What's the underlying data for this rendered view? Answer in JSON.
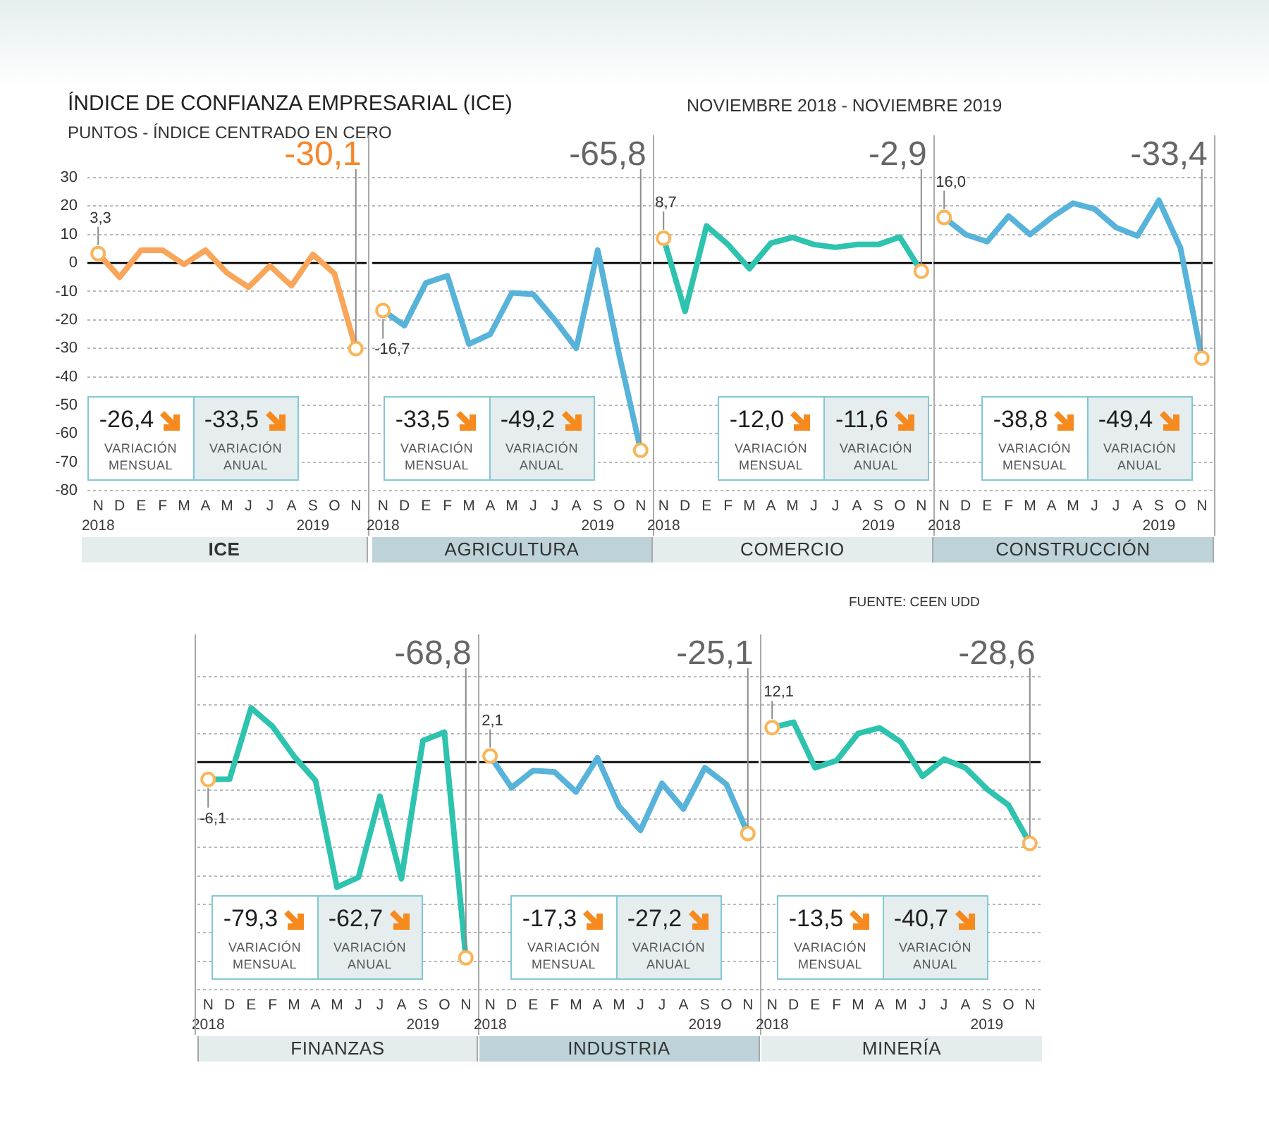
{
  "chart_data": [
    {
      "type": "line",
      "title": "ÍNDICE DE CONFIANZA EMPRESARIAL (ICE)",
      "subtitle": "PUNTOS - ÍNDICE CENTRADO EN CERO",
      "xlabel": "ICE",
      "categories": [
        "N\n2018",
        "D",
        "E",
        "F",
        "M",
        "A",
        "M",
        "J",
        "J",
        "A",
        "S\n2019",
        "O",
        "N"
      ],
      "values": [
        3.3,
        -5,
        4.5,
        4.5,
        -0.5,
        4.5,
        -3.5,
        -8.5,
        -1,
        -8,
        3,
        -3.7,
        -30.1
      ],
      "value_labels": [
        "3,3",
        null,
        null,
        null,
        null,
        null,
        null,
        null,
        null,
        null,
        null,
        null,
        "-30,1"
      ],
      "color": "#f9a65a",
      "ylim": [
        -80,
        30
      ],
      "yticks": [
        30,
        20,
        10,
        0,
        -10,
        -20,
        -30,
        -40,
        -50,
        -60,
        -70,
        -80
      ],
      "grid": "y",
      "ref_lines": [
        {
          "axis": "y",
          "value": 0,
          "color": "#000000"
        }
      ],
      "annotations": [
        "-26,4",
        "VARIACIÓN MENSUAL",
        "-33,5",
        "VARIACIÓN ANUAL",
        "NOVIEMBRE 2018 - NOVIEMBRE 2019",
        "FUENTE: CEEN UDD"
      ]
    },
    {
      "type": "line",
      "xlabel": "AGRICULTURA",
      "categories": [
        "N\n2018",
        "D",
        "E",
        "F",
        "M",
        "A",
        "M",
        "J",
        "J",
        "A",
        "S\n2019",
        "O",
        "N"
      ],
      "values": [
        -16.7,
        -22,
        -7,
        -4.5,
        -28.5,
        -25,
        -10.5,
        -11,
        -20,
        -30,
        4.5,
        -32.3,
        -65.8
      ],
      "value_labels": [
        "-16,7",
        null,
        null,
        null,
        null,
        null,
        null,
        null,
        null,
        null,
        null,
        null,
        "-65,8"
      ],
      "color": "#57b3d9",
      "ylim": [
        -80,
        30
      ],
      "yticks": [
        30,
        20,
        10,
        0,
        -10,
        -20,
        -30,
        -40,
        -50,
        -60,
        -70,
        -80
      ],
      "grid": "y",
      "tick_labels": "x",
      "ref_lines": [
        {
          "axis": "y",
          "value": 0,
          "color": "#000000"
        }
      ],
      "annotations": [
        "-33,5",
        "VARIACIÓN MENSUAL",
        "-49,2",
        "VARIACIÓN ANUAL"
      ]
    },
    {
      "type": "line",
      "xlabel": "COMERCIO",
      "categories": [
        "N\n2018",
        "D",
        "E",
        "F",
        "M",
        "A",
        "M",
        "J",
        "J",
        "A",
        "S\n2019",
        "O",
        "N"
      ],
      "values": [
        8.7,
        -17,
        13,
        6.5,
        -2,
        7,
        9,
        6.5,
        5.5,
        6.5,
        6.5,
        9.1,
        -2.9
      ],
      "value_labels": [
        "8,7",
        null,
        null,
        null,
        null,
        null,
        null,
        null,
        null,
        null,
        null,
        null,
        "-2,9"
      ],
      "color": "#2ec3ae",
      "ylim": [
        -80,
        30
      ],
      "yticks": [
        30,
        20,
        10,
        0,
        -10,
        -20,
        -30,
        -40,
        -50,
        -60,
        -70,
        -80
      ],
      "grid": "y",
      "tick_labels": "x",
      "ref_lines": [
        {
          "axis": "y",
          "value": 0,
          "color": "#000000"
        }
      ],
      "annotations": [
        "-12,0",
        "VARIACIÓN MENSUAL",
        "-11,6",
        "VARIACIÓN ANUAL"
      ]
    },
    {
      "type": "line",
      "xlabel": "CONSTRUCCIÓN",
      "categories": [
        "N\n2018",
        "D",
        "E",
        "F",
        "M",
        "A",
        "M",
        "J",
        "J",
        "A",
        "S\n2019",
        "O",
        "N"
      ],
      "values": [
        16,
        10,
        7.5,
        16.5,
        10,
        16,
        21,
        19,
        12.5,
        9.5,
        22,
        5.4,
        -33.4
      ],
      "value_labels": [
        "16,0",
        null,
        null,
        null,
        null,
        null,
        null,
        null,
        null,
        null,
        null,
        null,
        "-33,4"
      ],
      "color": "#57b3d9",
      "ylim": [
        -80,
        30
      ],
      "yticks": [
        30,
        20,
        10,
        0,
        -10,
        -20,
        -30,
        -40,
        -50,
        -60,
        -70,
        -80
      ],
      "grid": "y",
      "tick_labels": "x",
      "ref_lines": [
        {
          "axis": "y",
          "value": 0,
          "color": "#000000"
        }
      ],
      "annotations": [
        "-38,8",
        "VARIACIÓN MENSUAL",
        "-49,4",
        "VARIACIÓN ANUAL"
      ]
    },
    {
      "type": "line",
      "xlabel": "FINANZAS",
      "categories": [
        "N\n2018",
        "D",
        "E",
        "F",
        "M",
        "A",
        "M",
        "J",
        "J",
        "A",
        "S\n2019",
        "O",
        "N"
      ],
      "values": [
        -6.1,
        -6,
        19,
        12.5,
        2,
        -6.5,
        -44,
        -40.5,
        -12,
        -41,
        7.5,
        10.5,
        -68.8
      ],
      "value_labels": [
        "-6,1",
        null,
        null,
        null,
        null,
        null,
        null,
        null,
        null,
        null,
        null,
        null,
        "-68,8"
      ],
      "color": "#2ec3ae",
      "ylim": [
        -80,
        30
      ],
      "yticks": [
        30,
        20,
        10,
        0,
        -10,
        -20,
        -30,
        -40,
        -50,
        -60,
        -70,
        -80
      ],
      "grid": "y",
      "tick_labels": "x",
      "ref_lines": [
        {
          "axis": "y",
          "value": 0,
          "color": "#000000"
        }
      ],
      "annotations": [
        "-79,3",
        "VARIACIÓN MENSUAL",
        "-62,7",
        "VARIACIÓN ANUAL"
      ]
    },
    {
      "type": "line",
      "xlabel": "INDUSTRIA",
      "categories": [
        "N\n2018",
        "D",
        "E",
        "F",
        "M",
        "A",
        "M",
        "J",
        "J",
        "A",
        "S\n2019",
        "O",
        "N"
      ],
      "values": [
        2.1,
        -9,
        -3,
        -3.5,
        -10.5,
        1.5,
        -15.5,
        -24,
        -7.5,
        -16.5,
        -2,
        -7.8,
        -25.1
      ],
      "value_labels": [
        "2,1",
        null,
        null,
        null,
        null,
        null,
        null,
        null,
        null,
        null,
        null,
        null,
        "-25,1"
      ],
      "color": "#57b3d9",
      "ylim": [
        -80,
        30
      ],
      "yticks": [
        30,
        20,
        10,
        0,
        -10,
        -20,
        -30,
        -40,
        -50,
        -60,
        -70,
        -80
      ],
      "grid": "y",
      "tick_labels": "x",
      "ref_lines": [
        {
          "axis": "y",
          "value": 0,
          "color": "#000000"
        }
      ],
      "annotations": [
        "-17,3",
        "VARIACIÓN MENSUAL",
        "-27,2",
        "VARIACIÓN ANUAL"
      ]
    },
    {
      "type": "line",
      "xlabel": "MINERÍA",
      "categories": [
        "N\n2018",
        "D",
        "E",
        "F",
        "M",
        "A",
        "M",
        "J",
        "J",
        "A",
        "S\n2019",
        "O",
        "N"
      ],
      "values": [
        12.1,
        14,
        -2,
        0.5,
        10,
        12,
        7,
        -5,
        1,
        -2,
        -9.5,
        -15.1,
        -28.6
      ],
      "value_labels": [
        "12,1",
        null,
        null,
        null,
        null,
        null,
        null,
        null,
        null,
        null,
        null,
        null,
        "-28,6"
      ],
      "color": "#2ec3ae",
      "ylim": [
        -80,
        30
      ],
      "yticks": [
        30,
        20,
        10,
        0,
        -10,
        -20,
        -30,
        -40,
        -50,
        -60,
        -70,
        -80
      ],
      "grid": "y",
      "tick_labels": "x",
      "ref_lines": [
        {
          "axis": "y",
          "value": 0,
          "color": "#000000"
        }
      ],
      "annotations": [
        "-13,5",
        "VARIACIÓN MENSUAL",
        "-40,7",
        "VARIACIÓN ANUAL"
      ]
    }
  ]
}
